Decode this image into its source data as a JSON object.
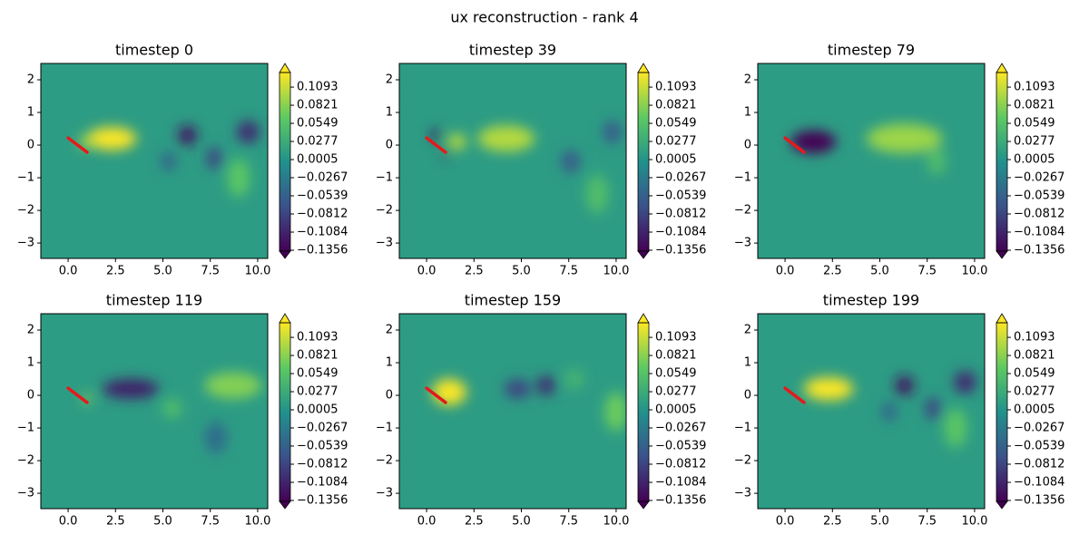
{
  "title": "ux reconstruction - rank 4",
  "chart_data": [
    {
      "type": "contour",
      "title": "timestep 0",
      "colormap": "viridis",
      "background": 0.01,
      "xlim": [
        -1.44,
        10.53
      ],
      "ylim": [
        -3.47,
        2.5
      ],
      "clim": [
        -0.137,
        0.1312
      ],
      "xticks": [
        {
          "value": 0,
          "label": "0.0"
        },
        {
          "value": 2.5,
          "label": "2.5"
        },
        {
          "value": 5,
          "label": "5.0"
        },
        {
          "value": 7.5,
          "label": "7.5"
        },
        {
          "value": 10,
          "label": "10.0"
        }
      ],
      "yticks": [
        {
          "value": -3,
          "label": "−3"
        },
        {
          "value": -2,
          "label": "−2"
        },
        {
          "value": -1,
          "label": "−1"
        },
        0,
        1,
        2
      ],
      "cticks": [
        {
          "value": -0.1356,
          "label": "−0.1356"
        },
        {
          "value": -0.1084,
          "label": "−0.1084"
        },
        {
          "value": -0.0812,
          "label": "−0.0812"
        },
        {
          "value": -0.0539,
          "label": "−0.0539"
        },
        {
          "value": -0.0267,
          "label": "−0.0267"
        },
        0.0005,
        0.0277,
        0.0549,
        0.0821,
        0.1093
      ],
      "plate": {
        "x": [
          0,
          1
        ],
        "y": [
          0.22,
          -0.22
        ],
        "color": "#e41a1c"
      },
      "field": [
        {
          "x": 2.3,
          "y": 0.2,
          "rx": 1.3,
          "ry": 0.35,
          "value": 0.13
        },
        {
          "x": 6.3,
          "y": 0.3,
          "rx": 0.5,
          "ry": 0.3,
          "value": -0.12
        },
        {
          "x": 9.5,
          "y": 0.4,
          "rx": 0.6,
          "ry": 0.35,
          "value": -0.1
        },
        {
          "x": 7.7,
          "y": -0.4,
          "rx": 0.4,
          "ry": 0.35,
          "value": -0.08
        },
        {
          "x": 5.3,
          "y": -0.5,
          "rx": 0.4,
          "ry": 0.3,
          "value": -0.05
        },
        {
          "x": 9,
          "y": -1,
          "rx": 0.6,
          "ry": 0.6,
          "value": 0.06
        },
        {
          "x": 1,
          "y": 0.1,
          "rx": 0.4,
          "ry": 0.2,
          "value": 0.1
        }
      ]
    },
    {
      "type": "contour",
      "title": "timestep 39",
      "colormap": "viridis",
      "background": 0.01,
      "xlim": [
        -1.44,
        10.53
      ],
      "ylim": [
        -3.47,
        2.5
      ],
      "clim": [
        -0.137,
        0.1312
      ],
      "xticks": [
        {
          "value": 0,
          "label": "0.0"
        },
        {
          "value": 2.5,
          "label": "2.5"
        },
        {
          "value": 5,
          "label": "5.0"
        },
        {
          "value": 7.5,
          "label": "7.5"
        },
        {
          "value": 10,
          "label": "10.0"
        }
      ],
      "yticks": [
        {
          "value": -3,
          "label": "−3"
        },
        {
          "value": -2,
          "label": "−2"
        },
        {
          "value": -1,
          "label": "−1"
        },
        0,
        1,
        2
      ],
      "cticks": [
        {
          "value": -0.1356,
          "label": "−0.1356"
        },
        {
          "value": -0.1084,
          "label": "−0.1084"
        },
        {
          "value": -0.0812,
          "label": "−0.0812"
        },
        {
          "value": -0.0539,
          "label": "−0.0539"
        },
        {
          "value": -0.0267,
          "label": "−0.0267"
        },
        0.0005,
        0.0277,
        0.0549,
        0.0821,
        0.1093
      ],
      "plate": {
        "x": [
          0,
          1
        ],
        "y": [
          0.22,
          -0.22
        ],
        "color": "#e41a1c"
      },
      "field": [
        {
          "x": 4.2,
          "y": 0.2,
          "rx": 1.5,
          "ry": 0.4,
          "value": 0.1
        },
        {
          "x": 0.5,
          "y": 0.3,
          "rx": 0.3,
          "ry": 0.15,
          "value": -0.13
        },
        {
          "x": 1,
          "y": -0.3,
          "rx": 0.2,
          "ry": 0.1,
          "value": -0.12
        },
        {
          "x": 9.8,
          "y": 0.4,
          "rx": 0.5,
          "ry": 0.35,
          "value": -0.06
        },
        {
          "x": 7.6,
          "y": -0.5,
          "rx": 0.5,
          "ry": 0.35,
          "value": -0.06
        },
        {
          "x": 9,
          "y": -1.5,
          "rx": 0.6,
          "ry": 0.6,
          "value": 0.05
        },
        {
          "x": 1.6,
          "y": 0.1,
          "rx": 0.5,
          "ry": 0.25,
          "value": 0.1
        }
      ]
    },
    {
      "type": "contour",
      "title": "timestep 79",
      "colormap": "viridis",
      "background": 0.01,
      "xlim": [
        -1.44,
        10.53
      ],
      "ylim": [
        -3.47,
        2.5
      ],
      "clim": [
        -0.137,
        0.1312
      ],
      "xticks": [
        {
          "value": 0,
          "label": "0.0"
        },
        {
          "value": 2.5,
          "label": "2.5"
        },
        {
          "value": 5,
          "label": "5.0"
        },
        {
          "value": 7.5,
          "label": "7.5"
        },
        {
          "value": 10,
          "label": "10.0"
        }
      ],
      "yticks": [
        {
          "value": -3,
          "label": "−3"
        },
        {
          "value": -2,
          "label": "−2"
        },
        {
          "value": -1,
          "label": "−1"
        },
        0,
        1,
        2
      ],
      "cticks": [
        {
          "value": -0.1356,
          "label": "−0.1356"
        },
        {
          "value": -0.1084,
          "label": "−0.1084"
        },
        {
          "value": -0.0812,
          "label": "−0.0812"
        },
        {
          "value": -0.0539,
          "label": "−0.0539"
        },
        {
          "value": -0.0267,
          "label": "−0.0267"
        },
        0.0005,
        0.0277,
        0.0549,
        0.0821,
        0.1093
      ],
      "plate": {
        "x": [
          0,
          1
        ],
        "y": [
          0.22,
          -0.22
        ],
        "color": "#e41a1c"
      },
      "field": [
        {
          "x": 1.5,
          "y": 0.1,
          "rx": 1.2,
          "ry": 0.35,
          "value": -0.14
        },
        {
          "x": 6.3,
          "y": 0.2,
          "rx": 2,
          "ry": 0.45,
          "value": 0.09
        },
        {
          "x": 8,
          "y": -0.5,
          "rx": 0.5,
          "ry": 0.4,
          "value": 0.05
        }
      ]
    },
    {
      "type": "contour",
      "title": "timestep 119",
      "colormap": "viridis",
      "background": 0.01,
      "xlim": [
        -1.44,
        10.53
      ],
      "ylim": [
        -3.47,
        2.5
      ],
      "clim": [
        -0.137,
        0.1312
      ],
      "xticks": [
        {
          "value": 0,
          "label": "0.0"
        },
        {
          "value": 2.5,
          "label": "2.5"
        },
        {
          "value": 5,
          "label": "5.0"
        },
        {
          "value": 7.5,
          "label": "7.5"
        },
        {
          "value": 10,
          "label": "10.0"
        }
      ],
      "yticks": [
        {
          "value": -3,
          "label": "−3"
        },
        {
          "value": -2,
          "label": "−2"
        },
        {
          "value": -1,
          "label": "−1"
        },
        0,
        1,
        2
      ],
      "cticks": [
        {
          "value": -0.1356,
          "label": "−0.1356"
        },
        {
          "value": -0.1084,
          "label": "−0.1084"
        },
        {
          "value": -0.0812,
          "label": "−0.0812"
        },
        {
          "value": -0.0539,
          "label": "−0.0539"
        },
        {
          "value": -0.0267,
          "label": "−0.0267"
        },
        0.0005,
        0.0277,
        0.0549,
        0.0821,
        0.1093
      ],
      "plate": {
        "x": [
          0,
          1
        ],
        "y": [
          0.22,
          -0.22
        ],
        "color": "#e41a1c"
      },
      "field": [
        {
          "x": 3.3,
          "y": 0.2,
          "rx": 1.5,
          "ry": 0.3,
          "value": -0.11
        },
        {
          "x": 8.7,
          "y": 0.3,
          "rx": 1.5,
          "ry": 0.4,
          "value": 0.08
        },
        {
          "x": 1,
          "y": -0.1,
          "rx": 0.2,
          "ry": 0.15,
          "value": 0.1
        },
        {
          "x": 5.5,
          "y": -0.4,
          "rx": 0.5,
          "ry": 0.3,
          "value": 0.05
        },
        {
          "x": 7.8,
          "y": -1.3,
          "rx": 0.6,
          "ry": 0.5,
          "value": -0.04
        }
      ]
    },
    {
      "type": "contour",
      "title": "timestep 159",
      "colormap": "viridis",
      "background": 0.01,
      "xlim": [
        -1.44,
        10.53
      ],
      "ylim": [
        -3.47,
        2.5
      ],
      "clim": [
        -0.137,
        0.1312
      ],
      "xticks": [
        {
          "value": 0,
          "label": "0.0"
        },
        {
          "value": 2.5,
          "label": "2.5"
        },
        {
          "value": 5,
          "label": "5.0"
        },
        {
          "value": 7.5,
          "label": "7.5"
        },
        {
          "value": 10,
          "label": "10.0"
        }
      ],
      "yticks": [
        {
          "value": -3,
          "label": "−3"
        },
        {
          "value": -2,
          "label": "−2"
        },
        {
          "value": -1,
          "label": "−1"
        },
        0,
        1,
        2
      ],
      "cticks": [
        {
          "value": -0.1356,
          "label": "−0.1356"
        },
        {
          "value": -0.1084,
          "label": "−0.1084"
        },
        {
          "value": -0.0812,
          "label": "−0.0812"
        },
        {
          "value": -0.0539,
          "label": "−0.0539"
        },
        {
          "value": -0.0267,
          "label": "−0.0267"
        },
        0.0005,
        0.0277,
        0.0549,
        0.0821,
        0.1093
      ],
      "plate": {
        "x": [
          0,
          1
        ],
        "y": [
          0.22,
          -0.22
        ],
        "color": "#e41a1c"
      },
      "field": [
        {
          "x": 1.2,
          "y": 0.1,
          "rx": 0.9,
          "ry": 0.4,
          "value": 0.13
        },
        {
          "x": 4.8,
          "y": 0.2,
          "rx": 0.7,
          "ry": 0.3,
          "value": -0.08
        },
        {
          "x": 6.3,
          "y": 0.3,
          "rx": 0.5,
          "ry": 0.3,
          "value": -0.1
        },
        {
          "x": 10,
          "y": -0.5,
          "rx": 0.6,
          "ry": 0.6,
          "value": 0.07
        },
        {
          "x": 7.8,
          "y": 0.5,
          "rx": 0.5,
          "ry": 0.3,
          "value": 0.04
        }
      ]
    },
    {
      "type": "contour",
      "title": "timestep 199",
      "colormap": "viridis",
      "background": 0.01,
      "xlim": [
        -1.44,
        10.53
      ],
      "ylim": [
        -3.47,
        2.5
      ],
      "clim": [
        -0.137,
        0.1312
      ],
      "xticks": [
        {
          "value": 0,
          "label": "0.0"
        },
        {
          "value": 2.5,
          "label": "2.5"
        },
        {
          "value": 5,
          "label": "5.0"
        },
        {
          "value": 7.5,
          "label": "7.5"
        },
        {
          "value": 10,
          "label": "10.0"
        }
      ],
      "yticks": [
        {
          "value": -3,
          "label": "−3"
        },
        {
          "value": -2,
          "label": "−2"
        },
        {
          "value": -1,
          "label": "−1"
        },
        0,
        1,
        2
      ],
      "cticks": [
        {
          "value": -0.1356,
          "label": "−0.1356"
        },
        {
          "value": -0.1084,
          "label": "−0.1084"
        },
        {
          "value": -0.0812,
          "label": "−0.0812"
        },
        {
          "value": -0.0539,
          "label": "−0.0539"
        },
        {
          "value": -0.0267,
          "label": "−0.0267"
        },
        0.0005,
        0.0277,
        0.0549,
        0.0821,
        0.1093
      ],
      "plate": {
        "x": [
          0,
          1
        ],
        "y": [
          0.22,
          -0.22
        ],
        "color": "#e41a1c"
      },
      "field": [
        {
          "x": 2.3,
          "y": 0.2,
          "rx": 1.3,
          "ry": 0.35,
          "value": 0.13
        },
        {
          "x": 6.3,
          "y": 0.3,
          "rx": 0.5,
          "ry": 0.3,
          "value": -0.12
        },
        {
          "x": 9.5,
          "y": 0.4,
          "rx": 0.6,
          "ry": 0.35,
          "value": -0.1
        },
        {
          "x": 7.8,
          "y": -0.4,
          "rx": 0.4,
          "ry": 0.35,
          "value": -0.08
        },
        {
          "x": 5.5,
          "y": -0.5,
          "rx": 0.4,
          "ry": 0.3,
          "value": -0.05
        },
        {
          "x": 9,
          "y": -1,
          "rx": 0.6,
          "ry": 0.6,
          "value": 0.06
        }
      ]
    }
  ]
}
